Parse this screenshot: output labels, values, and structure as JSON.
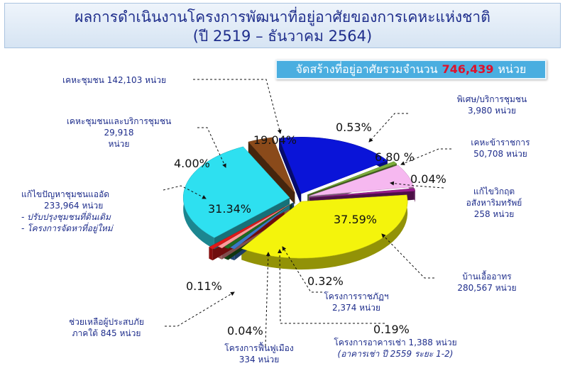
{
  "title": {
    "line1": "ผลการดำเนินงานโครงการพัฒนาที่อยู่อาศัยของการเคหะแห่งชาติ",
    "line2": "(ปี 2519 – ธันวาคม 2564)"
  },
  "total": {
    "prefix": "จัดสร้างที่อยู่อาศัยรวมจำนวน",
    "value": "746,439",
    "unit": "หน่วย"
  },
  "labels": {
    "kheha_chumchon": "เคหะชุมชน 142,103 หน่วย",
    "kheha_chumchon_borikan_1": "เคหะชุมชนและบริการชุมชน",
    "kheha_chumchon_borikan_2": "29,918",
    "kheha_chumchon_borikan_3": "หน่วย",
    "kaekhai_1": "แก้ไขปัญหาชุมชนแออัด",
    "kaekhai_2": "233,964 หน่วย",
    "kaekhai_3": "- ปรับปรุงชุมชนที่ดินเดิม",
    "kaekhai_4": "- โครงการจัดหาที่อยู่ใหม่",
    "phiset_1": "พิเศษ/บริการชุมชน",
    "phiset_2": "3,980 หน่วย",
    "kheha_kharatchakan_1": "เคหะข้าราชการ",
    "kheha_kharatchakan_2": "50,708 หน่วย",
    "kaekhai_wikrit_1": "แก้ไขวิกฤต",
    "kaekhai_wikrit_2": "อสังหาริมทรัพย์",
    "kaekhai_wikrit_3": "258 หน่วย",
    "baan_ua_athon_1": "บ้านเอื้ออาทร",
    "baan_ua_athon_2": "280,567 หน่วย",
    "ratchaphat_1": "โครงการราชภัฏฯ",
    "ratchaphat_2": "2,374 หน่วย",
    "chuai_1": "ช่วยเหลือผู้ประสบภัย",
    "chuai_2": "ภาคใต้ 845 หน่วย",
    "funfu_1": "โครงการฟื้นฟูเมือง",
    "funfu_2": "334 หน่วย",
    "akhan_1": "โครงการอาคารเช่า 1,388 หน่วย",
    "akhan_2": "(อาคารเช่า ปี 2559 ระยะ 1-2)"
  },
  "chart_data": {
    "type": "pie",
    "title": "ผลการดำเนินงานโครงการพัฒนาที่อยู่อาศัยของการเคหะแห่งชาติ (ปี 2519 – ธันวาคม 2564)",
    "unit": "หน่วย",
    "total": 746439,
    "slices": [
      {
        "name": "เคหะชุมชน",
        "value": 142103,
        "percent": 19.04,
        "percent_label": "19.04%",
        "color": "#0a14d8"
      },
      {
        "name": "พิเศษ/บริการชุมชน",
        "value": 3980,
        "percent": 0.53,
        "percent_label": "0.53%",
        "color": "#7cae3c"
      },
      {
        "name": "เคหะข้าราชการ",
        "value": 50708,
        "percent": 6.8,
        "percent_label": "6.80 %",
        "color": "#f6b8f0"
      },
      {
        "name": "แก้ไขวิกฤตอสังหาริมทรัพย์",
        "value": 258,
        "percent": 0.04,
        "percent_label": "0.04%",
        "color": "#9a1f8e"
      },
      {
        "name": "บ้านเอื้ออาทร",
        "value": 280567,
        "percent": 37.59,
        "percent_label": "37.59%",
        "color": "#f4f40c"
      },
      {
        "name": "โครงการอาคารเช่า",
        "value": 1388,
        "percent": 0.19,
        "percent_label": "0.19%",
        "color": "#3a78c8"
      },
      {
        "name": "โครงการราชภัฏฯ",
        "value": 2374,
        "percent": 0.32,
        "percent_label": "0.32%",
        "color": "#1f6a1f"
      },
      {
        "name": "โครงการฟื้นฟูเมือง",
        "value": 334,
        "percent": 0.04,
        "percent_label": "0.04%",
        "color": "#ff9a9a"
      },
      {
        "name": "ช่วยเหลือผู้ประสบภัยภาคใต้",
        "value": 845,
        "percent": 0.11,
        "percent_label": "0.11%",
        "color": "#e01818"
      },
      {
        "name": "แก้ไขปัญหาชุมชนแออัด",
        "value": 233964,
        "percent": 31.34,
        "percent_label": "31.34%",
        "color": "#2ee0f0"
      },
      {
        "name": "เคหะชุมชนและบริการชุมชน",
        "value": 29918,
        "percent": 4.0,
        "percent_label": "4.00%",
        "color": "#8a4a1a"
      }
    ]
  }
}
